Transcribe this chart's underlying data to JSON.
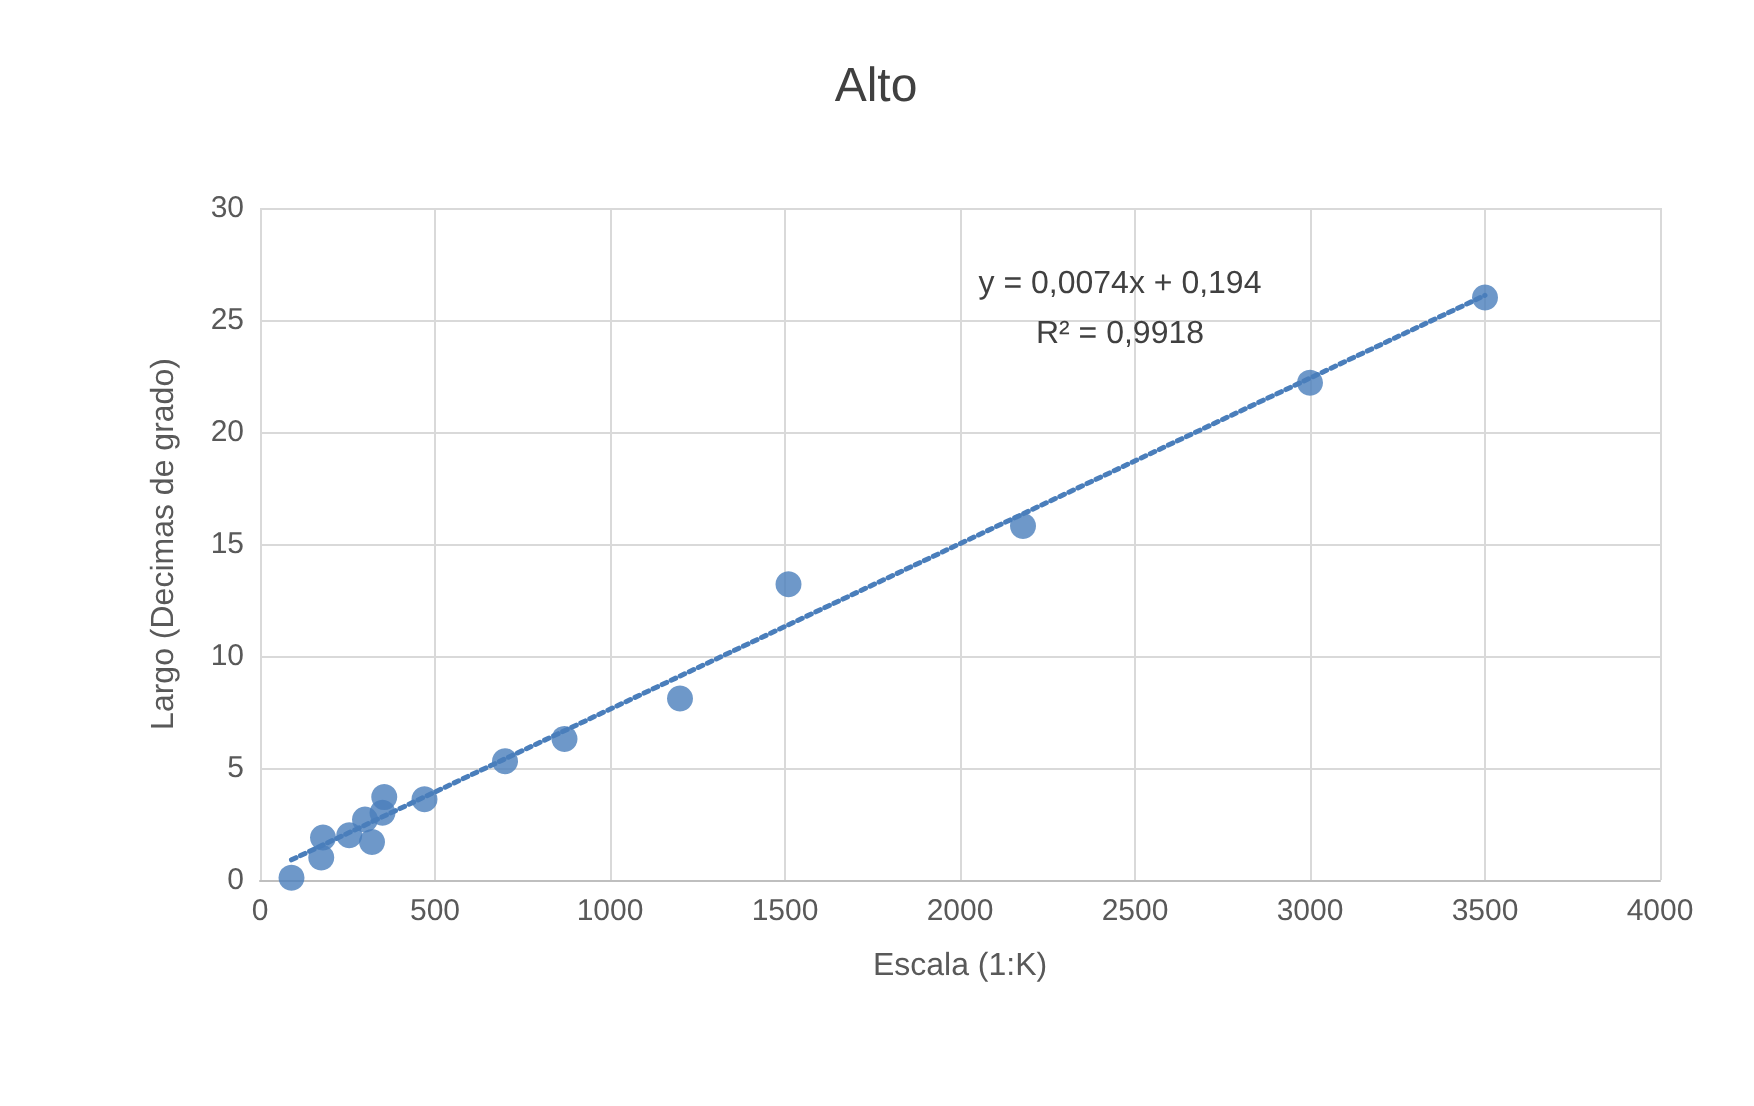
{
  "chart_data": {
    "type": "scatter",
    "title": "Alto",
    "xlabel": "Escala (1:K)",
    "ylabel": "Largo (Decimas de grado)",
    "x": [
      90,
      175,
      180,
      255,
      320,
      300,
      350,
      355,
      470,
      700,
      870,
      1200,
      1510,
      2180,
      3000,
      3500
    ],
    "series": [
      {
        "color": "#4a7ebb",
        "marker": "circle",
        "values": [
          0.1,
          1.0,
          1.9,
          2.0,
          1.7,
          2.7,
          3.0,
          3.7,
          3.6,
          5.3,
          6.3,
          8.1,
          13.2,
          15.8,
          22.2,
          26.0
        ]
      },
      {
        "type": "line",
        "color": "#4a7ebb",
        "line_style": "dotted",
        "marker": "none",
        "x": [
          90,
          3500
        ],
        "values": [
          0.9,
          26.1
        ]
      }
    ],
    "annotations": [
      "y = 0,0074x + 0,194",
      "R² = 0,9918"
    ],
    "xlim": [
      0,
      4000
    ],
    "xticks": [
      0,
      500,
      1000,
      1500,
      2000,
      2500,
      3000,
      3500,
      4000
    ],
    "ylim": [
      0,
      30
    ],
    "yticks": [
      0,
      5,
      10,
      15,
      20,
      25,
      30
    ],
    "grid": true
  }
}
